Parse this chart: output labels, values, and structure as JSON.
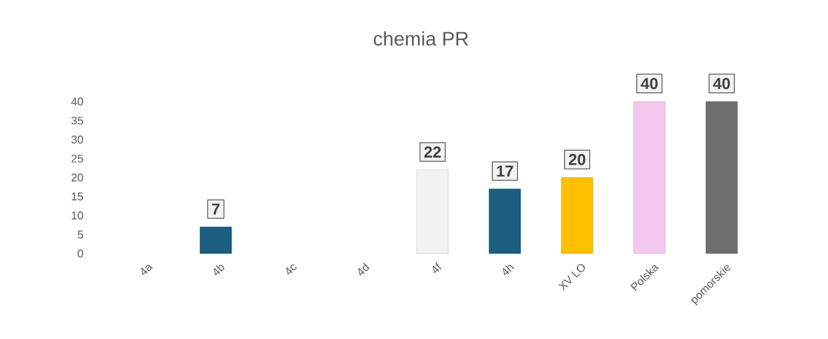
{
  "chart_data": {
    "type": "bar",
    "title": "chemia PR",
    "categories": [
      "4a",
      "4b",
      "4c",
      "4d",
      "4f",
      "4h",
      "XV LO",
      "Polska",
      "pomorskie"
    ],
    "values": [
      null,
      7,
      null,
      null,
      22,
      17,
      20,
      40,
      40
    ],
    "colors": [
      null,
      "#1b5e80",
      null,
      null,
      "#f2f2f2",
      "#1b5e80",
      "#ffc000",
      "#f4c8ef",
      "#6f6f6f"
    ],
    "ylim": [
      0,
      40
    ],
    "yticks": [
      0,
      5,
      10,
      15,
      20,
      25,
      30,
      35,
      40
    ],
    "data_labels": true
  }
}
